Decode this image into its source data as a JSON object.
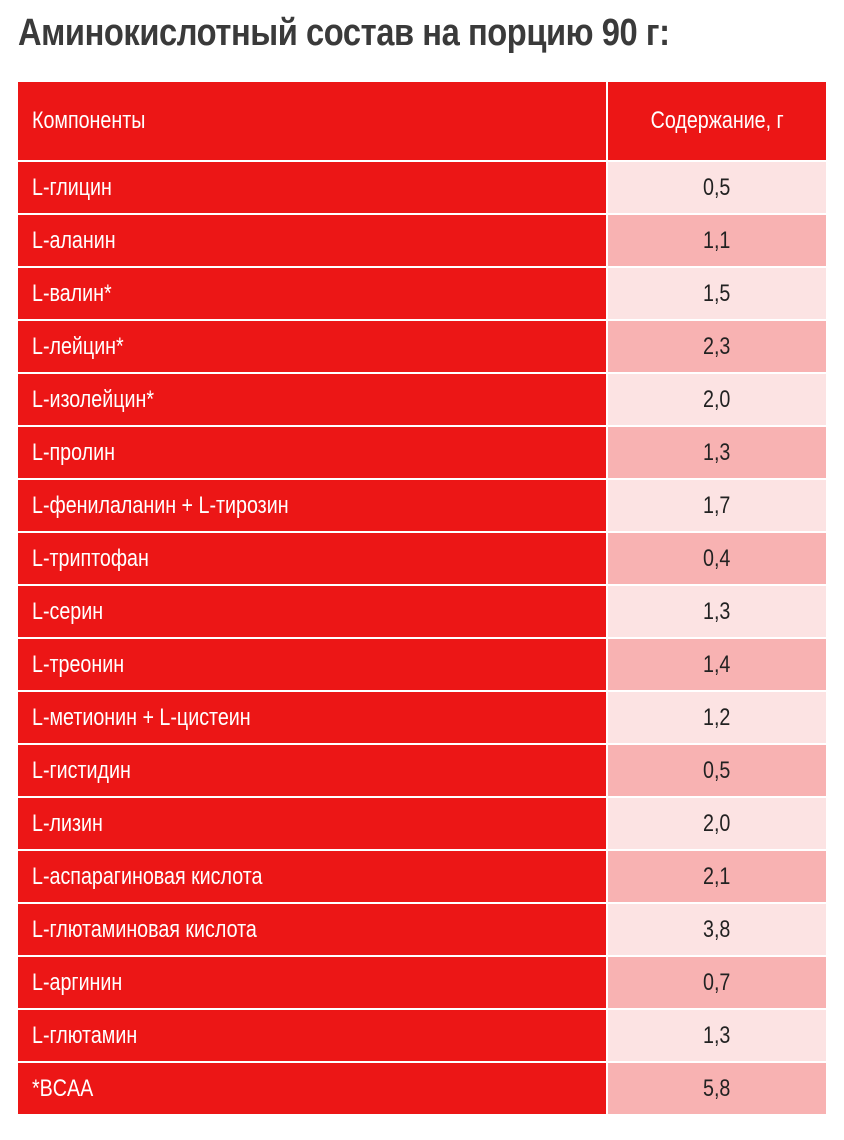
{
  "title": "Аминокислотный состав на порцию 90 г:",
  "table": {
    "headers": {
      "component": "Компоненты",
      "content": "Содержание, г"
    },
    "rows": [
      {
        "name": "L-глицин",
        "value": "0,5"
      },
      {
        "name": "L-аланин",
        "value": "1,1"
      },
      {
        "name": "L-валин*",
        "value": "1,5"
      },
      {
        "name": "L-лейцин*",
        "value": "2,3"
      },
      {
        "name": "L-изолейцин*",
        "value": "2,0"
      },
      {
        "name": "L-пролин",
        "value": "1,3"
      },
      {
        "name": "L-фенилаланин + L-тирозин",
        "value": "1,7"
      },
      {
        "name": "L-триптофан",
        "value": "0,4"
      },
      {
        "name": "L-серин",
        "value": "1,3"
      },
      {
        "name": "L-треонин",
        "value": "1,4"
      },
      {
        "name": "L-метионин + L-цистеин",
        "value": "1,2"
      },
      {
        "name": "L-гистидин",
        "value": "0,5"
      },
      {
        "name": "L-лизин",
        "value": "2,0"
      },
      {
        "name": "L-аспарагиновая кислота",
        "value": "2,1"
      },
      {
        "name": "L-глютаминовая кислота",
        "value": "3,8"
      },
      {
        "name": "L-аргинин",
        "value": "0,7"
      },
      {
        "name": "L-глютамин",
        "value": "1,3"
      },
      {
        "name": "*BCAA",
        "value": "5,8"
      }
    ]
  },
  "colors": {
    "header_red": "#ec1616",
    "row_light": "#fce3e3",
    "row_pink": "#f8b2b2",
    "title_text": "#3a3a3a"
  }
}
